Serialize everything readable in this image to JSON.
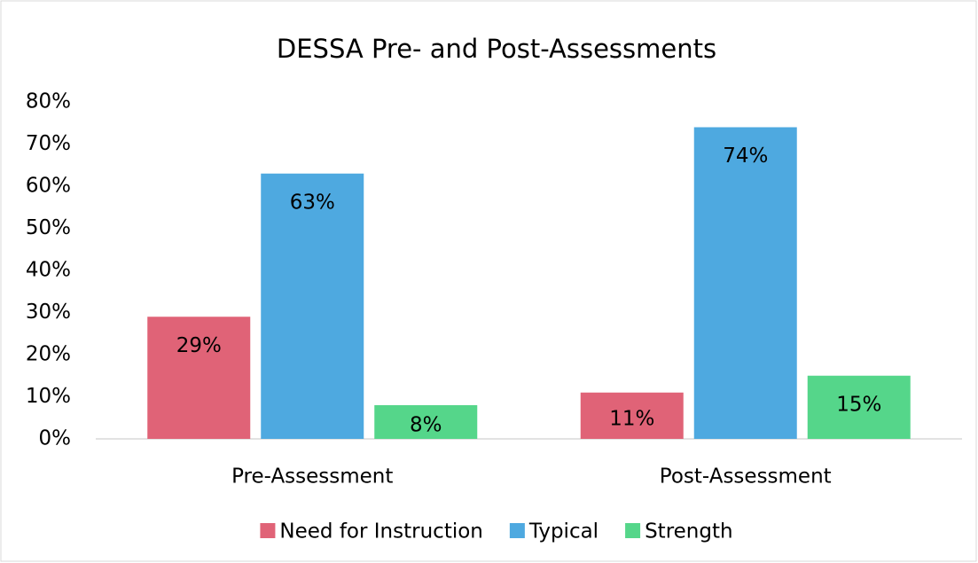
{
  "chart_data": {
    "type": "bar",
    "title": "DESSA Pre- and Post-Assessments",
    "categories": [
      "Pre-Assessment",
      "Post-Assessment"
    ],
    "series": [
      {
        "name": "Need for Instruction",
        "color": "#e06377",
        "values": [
          29,
          11
        ],
        "value_labels": [
          "29%",
          "11%"
        ]
      },
      {
        "name": "Typical",
        "color": "#4ea9e0",
        "values": [
          63,
          74
        ],
        "value_labels": [
          "63%",
          "74%"
        ]
      },
      {
        "name": "Strength",
        "color": "#55d68a",
        "values": [
          8,
          15
        ],
        "value_labels": [
          "8%",
          "15%"
        ]
      }
    ],
    "ylim": [
      0,
      80
    ],
    "yticks": [
      {
        "value": 0,
        "label": "0%"
      },
      {
        "value": 10,
        "label": "10%"
      },
      {
        "value": 20,
        "label": "20%"
      },
      {
        "value": 30,
        "label": "30%"
      },
      {
        "value": 40,
        "label": "40%"
      },
      {
        "value": 50,
        "label": "50%"
      },
      {
        "value": 60,
        "label": "60%"
      },
      {
        "value": 70,
        "label": "70%"
      },
      {
        "value": 80,
        "label": "80%"
      }
    ],
    "grid": false,
    "legend": "bottom"
  }
}
